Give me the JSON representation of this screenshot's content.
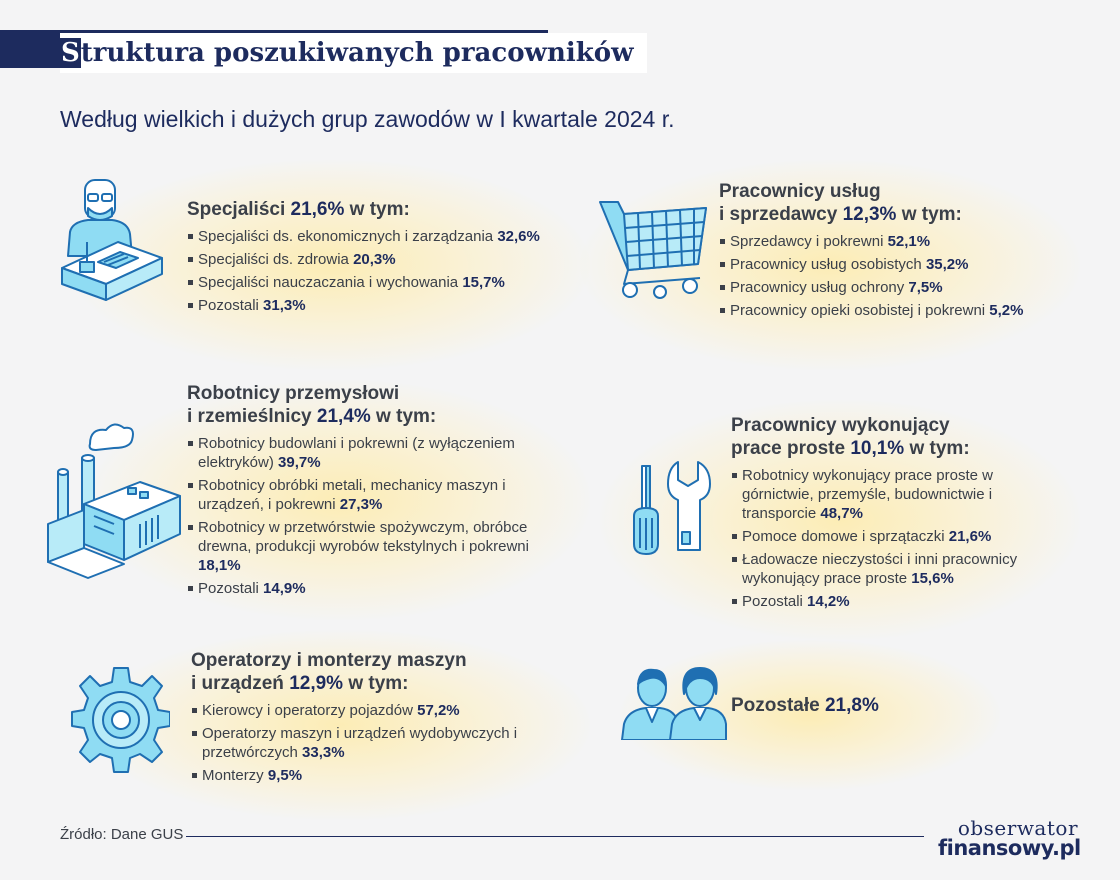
{
  "header": {
    "title_first": "S",
    "title_rest": "truktura poszukiwanych pracowników",
    "subtitle": "Według wielkich i dużych grup zawodów w I kwartale 2024 r."
  },
  "groups": {
    "specialists": {
      "title": "Specjaliści",
      "value": "21,6%",
      "suffix": " w tym:",
      "items": [
        {
          "label": "Specjaliści ds. ekonomicznych i zarządzania ",
          "value": "32,6%"
        },
        {
          "label": "Specjaliści ds. zdrowia ",
          "value": "20,3%"
        },
        {
          "label": "Specjaliści nauczaczania i wychowania ",
          "value": "15,7%"
        },
        {
          "label": "Pozostali ",
          "value": "31,3%"
        }
      ]
    },
    "services": {
      "title_line1": "Pracownicy usług",
      "title_line2": "i sprzedawcy ",
      "value": "12,3%",
      "suffix": " w tym:",
      "items": [
        {
          "label": "Sprzedawcy i pokrewni  ",
          "value": "52,1%"
        },
        {
          "label": "Pracownicy usług osobistych ",
          "value": "35,2%"
        },
        {
          "label": "Pracownicy usług ochrony ",
          "value": "7,5%"
        },
        {
          "label": "Pracownicy opieki osobistej i pokrewni ",
          "value": "5,2%"
        }
      ]
    },
    "industrial": {
      "title_line1": "Robotnicy przemysłowi",
      "title_line2": "i rzemieślnicy ",
      "value": "21,4%",
      "suffix": " w tym:",
      "items": [
        {
          "label": "Robotnicy budowlani i pokrewni (z wyłączeniem elektryków) ",
          "value": "39,7%"
        },
        {
          "label": "Robotnicy obróbki metali, mechanicy maszyn i urządzeń, i pokrewni ",
          "value": "27,3%"
        },
        {
          "label": "Robotnicy w przetwórstwie spożywczym, obróbce drewna, produkcji wyrobów tekstylnych i pokrewni ",
          "value": "18,1%"
        },
        {
          "label": "Pozostali ",
          "value": "14,9%"
        }
      ]
    },
    "simple": {
      "title_line1": "Pracownicy wykonujący",
      "title_line2": "prace proste ",
      "value": "10,1%",
      "suffix": " w tym:",
      "items": [
        {
          "label": "Robotnicy wykonujący prace proste w górnictwie, przemyśle, budownictwie i transporcie ",
          "value": "48,7%"
        },
        {
          "label": "Pomoce domowe i sprzątaczki ",
          "value": "21,6%"
        },
        {
          "label": "Ładowacze nieczystości i inni pracownicy wykonujący prace proste ",
          "value": "15,6%"
        },
        {
          "label": "Pozostali ",
          "value": "14,2%"
        }
      ]
    },
    "operators": {
      "title_line1": "Operatorzy i monterzy maszyn",
      "title_line2": "i urządzeń ",
      "value": "12,9%",
      "suffix": " w tym:",
      "items": [
        {
          "label": "Kierowcy i operatorzy pojazdów ",
          "value": "57,2%"
        },
        {
          "label": "Operatorzy maszyn i urządzeń wydobywczych i przetwórczych ",
          "value": "33,3%"
        },
        {
          "label": "Monterzy ",
          "value": "9,5%"
        }
      ]
    },
    "others": {
      "title": "Pozostałe ",
      "value": "21,8%"
    }
  },
  "icons": {
    "specialists": "office-worker-desk-icon",
    "services": "shopping-cart-icon",
    "industrial": "factory-icon",
    "simple": "screwdriver-wrench-icon",
    "operators": "gear-icon",
    "others": "people-icon"
  },
  "colors": {
    "navy": "#1d2b5e",
    "icon_fill": "#8fdcf3",
    "icon_stroke": "#1f6fb2",
    "glow": "#ffeaa0"
  },
  "footer": {
    "source": "Źródło: Dane GUS",
    "logo_line1": "obserwator",
    "logo_line2": "finansowy.pl"
  }
}
